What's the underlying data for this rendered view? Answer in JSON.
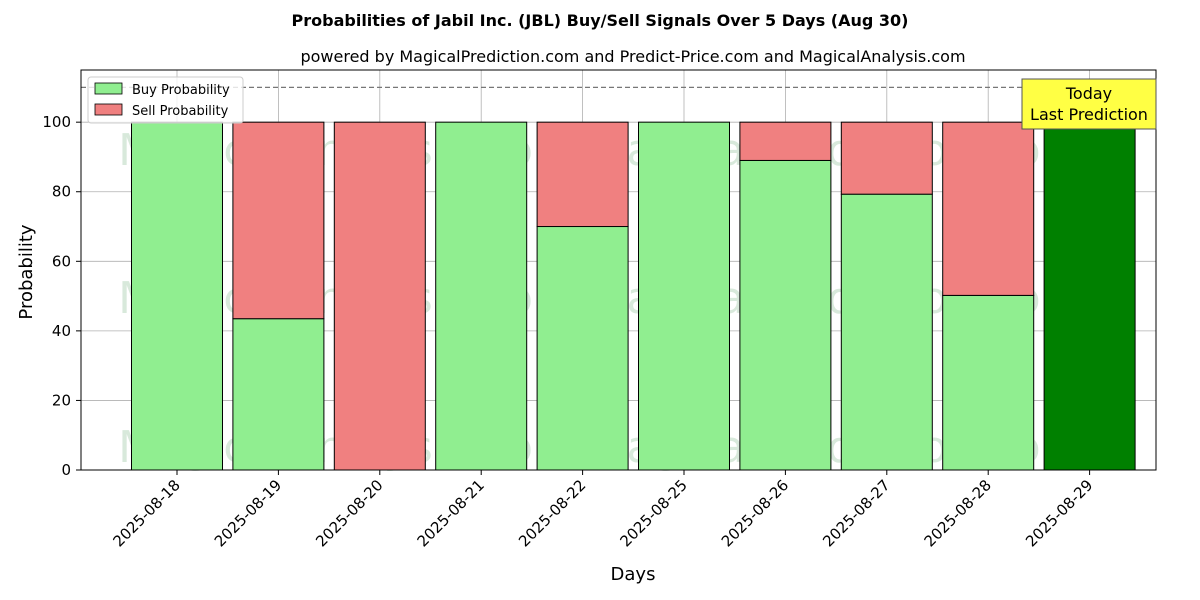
{
  "chart_data": {
    "type": "bar",
    "stacked": true,
    "title": "Probabilities of Jabil Inc. (JBL) Buy/Sell Signals Over 5 Days (Aug 30)",
    "subtitle": "powered by MagicalPrediction.com and Predict-Price.com and MagicalAnalysis.com",
    "xlabel": "Days",
    "ylabel": "Probability",
    "ylim": [
      0,
      115
    ],
    "yticks": [
      0,
      20,
      40,
      60,
      80,
      100
    ],
    "grid": true,
    "reference_line": 110,
    "categories": [
      "2025-08-18",
      "2025-08-19",
      "2025-08-20",
      "2025-08-21",
      "2025-08-22",
      "2025-08-25",
      "2025-08-26",
      "2025-08-27",
      "2025-08-28",
      "2025-08-29"
    ],
    "series": [
      {
        "name": "Buy Probability",
        "color": "#90ee90",
        "values": [
          100,
          43.5,
          0,
          100,
          70,
          100,
          89,
          79.3,
          50.2,
          100
        ]
      },
      {
        "name": "Sell Probability",
        "color": "#f08080",
        "values": [
          0,
          56.5,
          100,
          0,
          30,
          0,
          11,
          20.7,
          49.8,
          0
        ]
      }
    ],
    "highlight": {
      "index": 9,
      "color": "#008000"
    },
    "legend_position": "top-left",
    "annotation": {
      "line1": "Today",
      "line2": "Last Prediction",
      "background": "#ffff44"
    },
    "watermarks": [
      "MagicalAnalysis.com",
      "MagicalPrediction.com"
    ]
  }
}
